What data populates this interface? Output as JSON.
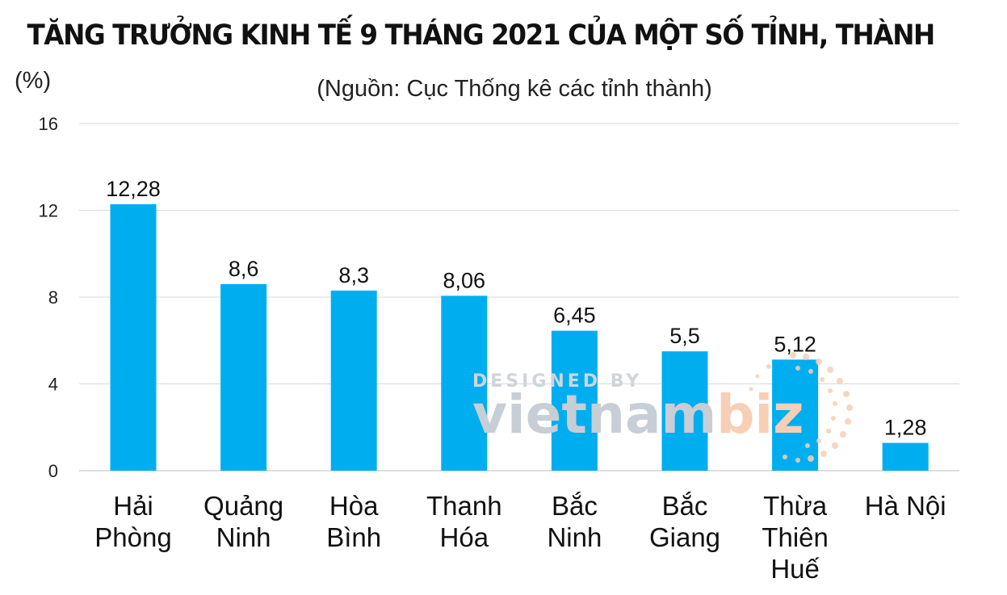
{
  "chart_data": {
    "type": "bar",
    "title": "TĂNG TRƯỞNG KINH TẾ 9 THÁNG 2021 CỦA MỘT SỐ TỈNH, THÀNH",
    "subtitle": "(Nguồn: Cục Thống kê các tỉnh thành)",
    "ylabel": "(%)",
    "xlabel": "",
    "categories": [
      [
        "Hải",
        "Phòng"
      ],
      [
        "Quảng",
        "Ninh"
      ],
      [
        "Hòa",
        "Bình"
      ],
      [
        "Thanh",
        "Hóa"
      ],
      [
        "Bắc",
        "Ninh"
      ],
      [
        "Bắc",
        "Giang"
      ],
      [
        "Thừa",
        "Thiên",
        "Huế"
      ],
      [
        "Hà Nội"
      ]
    ],
    "values": [
      12.28,
      8.6,
      8.3,
      8.06,
      6.45,
      5.5,
      5.12,
      1.28
    ],
    "data_labels": [
      "12,28",
      "8,6",
      "8,3",
      "8,06",
      "6,45",
      "5,5",
      "5,12",
      "1,28"
    ],
    "ylim": [
      0,
      16
    ],
    "yticks": [
      0,
      4,
      8,
      12,
      16
    ],
    "grid": true,
    "bar_color": "#00aeef",
    "gridline_color": "#d9d9d9"
  },
  "watermark": {
    "top": "DESIGNED BY",
    "main_left": "vietnam",
    "main_right": "biz",
    "color": "#c7ced5",
    "accent": "#f6cfb4"
  }
}
